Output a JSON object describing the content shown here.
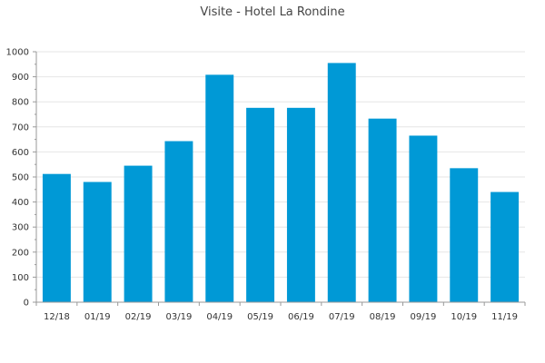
{
  "chart_data": {
    "type": "bar",
    "title": "Visite - Hotel La Rondine",
    "xlabel": "",
    "ylabel": "",
    "categories": [
      "12/18",
      "01/19",
      "02/19",
      "03/19",
      "04/19",
      "05/19",
      "06/19",
      "07/19",
      "08/19",
      "09/19",
      "10/19",
      "11/19"
    ],
    "values": [
      512,
      480,
      545,
      643,
      908,
      776,
      776,
      955,
      733,
      665,
      535,
      440
    ],
    "ylim": [
      0,
      1000
    ],
    "yticks": [
      0,
      100,
      200,
      300,
      400,
      500,
      600,
      700,
      800,
      900,
      1000
    ],
    "grid": true,
    "legend": "none",
    "colors": {
      "bar": "#0099d6",
      "grid": "#e6e6e6",
      "axis": "#999999",
      "text": "#333333"
    }
  }
}
